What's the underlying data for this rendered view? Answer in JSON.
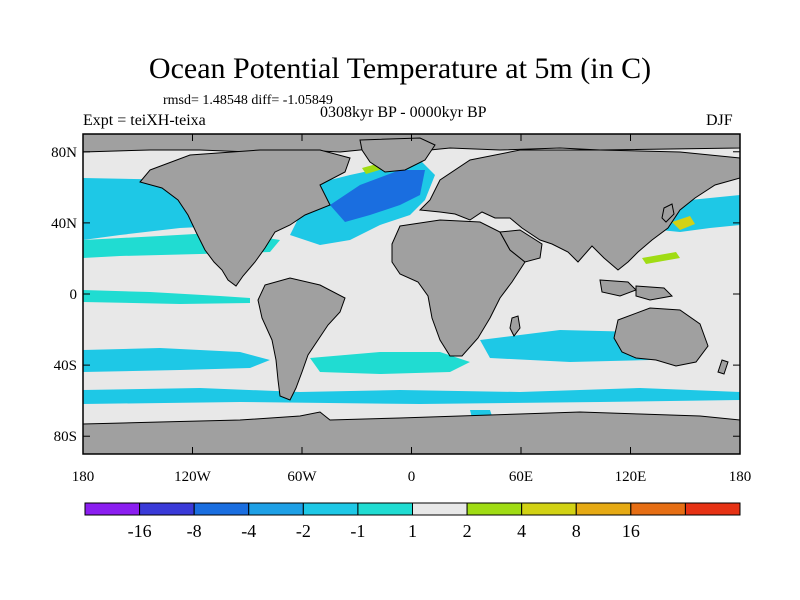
{
  "title": "Ocean Potential Temperature at 5m (in C)",
  "stats": "rmsd= 1.48548  diff= -1.05849",
  "experiment": "Expt = teiXH-teixa",
  "period": "0308kyr BP - 0000kyr BP",
  "season": "DJF",
  "colors": {
    "land": "#a0a0a0",
    "ocean_neutral": "#e8e8e8",
    "coastline": "#000000"
  },
  "axes": {
    "lat_ticks": [
      {
        "label": "80N",
        "value": 80
      },
      {
        "label": "40N",
        "value": 40
      },
      {
        "label": "0",
        "value": 0
      },
      {
        "label": "40S",
        "value": -40
      },
      {
        "label": "80S",
        "value": -80
      }
    ],
    "lon_ticks": [
      {
        "label": "180",
        "value": -180
      },
      {
        "label": "120W",
        "value": -120
      },
      {
        "label": "60W",
        "value": -60
      },
      {
        "label": "0",
        "value": 0
      },
      {
        "label": "60E",
        "value": 60
      },
      {
        "label": "120E",
        "value": 120
      },
      {
        "label": "180",
        "value": 180
      }
    ]
  },
  "colorbar": {
    "colors": [
      "#8b1ef0",
      "#3a3ad8",
      "#1a6ee0",
      "#1ea0e6",
      "#1ec8e6",
      "#20dcd2",
      "#e8e8e8",
      "#a0dc14",
      "#d2d214",
      "#e6aa14",
      "#e66e14",
      "#e63214"
    ],
    "labels": [
      "-16",
      "-8",
      "-4",
      "-2",
      "-1",
      "1",
      "2",
      "4",
      "8",
      "16"
    ]
  }
}
